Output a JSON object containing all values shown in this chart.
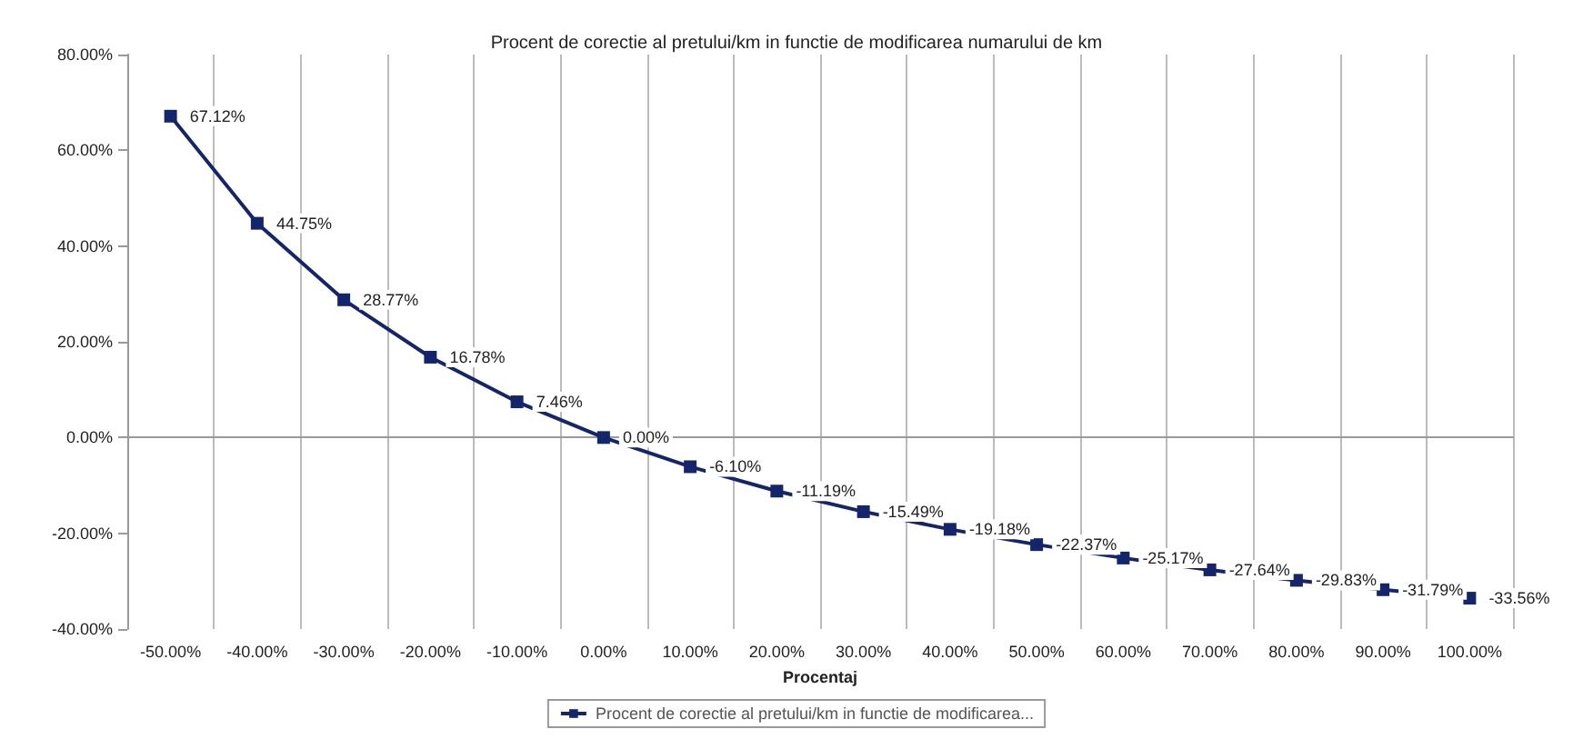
{
  "chart_data": {
    "type": "line",
    "title": "Procent de corectie al pretului/km in functie de modificarea numarului de km",
    "xlabel": "Procentaj",
    "categories": [
      "-50.00%",
      "-40.00%",
      "-30.00%",
      "-20.00%",
      "-10.00%",
      "0.00%",
      "10.00%",
      "20.00%",
      "30.00%",
      "40.00%",
      "50.00%",
      "60.00%",
      "70.00%",
      "80.00%",
      "90.00%",
      "100.00%"
    ],
    "series": [
      {
        "name": "Procent de corectie al pretului/km in functie de modificarea...",
        "color": "#14256b",
        "values": [
          67.12,
          44.75,
          28.77,
          16.78,
          7.46,
          0.0,
          -6.1,
          -11.19,
          -15.49,
          -19.18,
          -22.37,
          -25.17,
          -27.64,
          -29.83,
          -31.79,
          -33.56
        ],
        "value_labels": [
          "67.12%",
          "44.75%",
          "28.77%",
          "16.78%",
          "7.46%",
          "0.00%",
          "-6.10%",
          "-11.19%",
          "-15.49%",
          "-19.18%",
          "-22.37%",
          "-25.17%",
          "-27.64%",
          "-29.83%",
          "-31.79%",
          "-33.56%"
        ]
      }
    ],
    "ylim": [
      -40,
      80
    ],
    "yticks": [
      {
        "value": -40,
        "label": "-40.00%"
      },
      {
        "value": -20,
        "label": "-20.00%"
      },
      {
        "value": 0,
        "label": "0.00%"
      },
      {
        "value": 20,
        "label": "20.00%"
      },
      {
        "value": 40,
        "label": "40.00%"
      },
      {
        "value": 60,
        "label": "60.00%"
      },
      {
        "value": 80,
        "label": "80.00%"
      }
    ],
    "grid": "x",
    "legend": "bottom",
    "marker": "square",
    "line_style": "solid"
  }
}
